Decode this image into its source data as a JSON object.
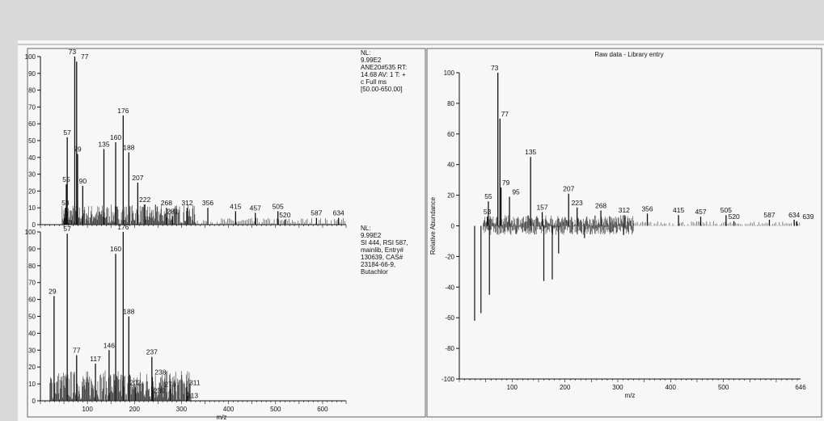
{
  "chart_data": [
    {
      "type": "bar",
      "panel": "top-left",
      "info_lines": [
        "NL:",
        "9.99E2",
        "ANE20#535 RT:",
        "14.68  AV: 1 T: +",
        "c Full ms",
        "[50.00-650.00]"
      ],
      "xlim": [
        0,
        650
      ],
      "ylim": [
        0,
        100
      ],
      "yticks": [
        0,
        10,
        20,
        30,
        40,
        50,
        60,
        70,
        80,
        90,
        100
      ],
      "xticks": [],
      "xlabel": "",
      "labeled_peaks": [
        {
          "label": "51",
          "x": 51,
          "y": 4
        },
        {
          "label": "53",
          "x": 53,
          "y": 10
        },
        {
          "label": "55",
          "x": 55,
          "y": 24
        },
        {
          "label": "57",
          "x": 57,
          "y": 52
        },
        {
          "label": "73",
          "x": 73,
          "y": 100
        },
        {
          "label": "77",
          "x": 77,
          "y": 97
        },
        {
          "label": "79",
          "x": 79,
          "y": 42
        },
        {
          "label": "90",
          "x": 90,
          "y": 23
        },
        {
          "label": "135",
          "x": 135,
          "y": 45
        },
        {
          "label": "160",
          "x": 160,
          "y": 49
        },
        {
          "label": "176",
          "x": 176,
          "y": 65
        },
        {
          "label": "188",
          "x": 188,
          "y": 43
        },
        {
          "label": "207",
          "x": 207,
          "y": 25
        },
        {
          "label": "222",
          "x": 222,
          "y": 12
        },
        {
          "label": "268",
          "x": 268,
          "y": 10
        },
        {
          "label": "281",
          "x": 281,
          "y": 5
        },
        {
          "label": "312",
          "x": 312,
          "y": 10
        },
        {
          "label": "356",
          "x": 356,
          "y": 10
        },
        {
          "label": "415",
          "x": 415,
          "y": 8
        },
        {
          "label": "457",
          "x": 457,
          "y": 7
        },
        {
          "label": "505",
          "x": 505,
          "y": 8
        },
        {
          "label": "520",
          "x": 520,
          "y": 3
        },
        {
          "label": "587",
          "x": 587,
          "y": 4
        },
        {
          "label": "634",
          "x": 634,
          "y": 4
        }
      ]
    },
    {
      "type": "bar",
      "panel": "bottom-left",
      "info_lines": [
        "NL:",
        "9.99E2",
        "SI 444, RSI 587,",
        "mainlib, Entry#",
        "130639, CAS#",
        "23184-66-9,",
        "Butachlor"
      ],
      "xlim": [
        0,
        650
      ],
      "ylim": [
        0,
        100
      ],
      "yticks": [
        0,
        10,
        20,
        30,
        40,
        50,
        60,
        70,
        80,
        90,
        100
      ],
      "xticks": [
        100,
        200,
        300,
        400,
        500,
        600
      ],
      "xlabel": "m/z",
      "labeled_peaks": [
        {
          "label": "29",
          "x": 29,
          "y": 62
        },
        {
          "label": "57",
          "x": 57,
          "y": 99
        },
        {
          "label": "77",
          "x": 77,
          "y": 27
        },
        {
          "label": "117",
          "x": 117,
          "y": 22
        },
        {
          "label": "146",
          "x": 146,
          "y": 30
        },
        {
          "label": "160",
          "x": 160,
          "y": 87
        },
        {
          "label": "176",
          "x": 176,
          "y": 100
        },
        {
          "label": "188",
          "x": 188,
          "y": 50
        },
        {
          "label": "202",
          "x": 202,
          "y": 8
        },
        {
          "label": "237",
          "x": 237,
          "y": 26
        },
        {
          "label": "238",
          "x": 238,
          "y": 14
        },
        {
          "label": "239",
          "x": 239,
          "y": 6
        },
        {
          "label": "276",
          "x": 276,
          "y": 7
        },
        {
          "label": "311",
          "x": 311,
          "y": 8
        },
        {
          "label": "313",
          "x": 313,
          "y": 3
        }
      ]
    },
    {
      "type": "bar",
      "panel": "right",
      "title": "Raw data - Library entry",
      "ylabel": "Relative Abundance",
      "xlabel": "m/z",
      "xlim": [
        0,
        646
      ],
      "ylim": [
        -100,
        100
      ],
      "yticks": [
        -100,
        -80,
        -60,
        -40,
        -20,
        0,
        20,
        40,
        60,
        80,
        100
      ],
      "xticks": [
        100,
        200,
        300,
        400,
        500
      ],
      "x_end_label": "646",
      "labeled_peaks": [
        {
          "label": "53",
          "x": 53,
          "y": 6
        },
        {
          "label": "55",
          "x": 55,
          "y": 16
        },
        {
          "label": "73",
          "x": 73,
          "y": 100
        },
        {
          "label": "77",
          "x": 77,
          "y": 70
        },
        {
          "label": "79",
          "x": 79,
          "y": 25
        },
        {
          "label": "95",
          "x": 95,
          "y": 19
        },
        {
          "label": "135",
          "x": 135,
          "y": 45
        },
        {
          "label": "157",
          "x": 157,
          "y": 9
        },
        {
          "label": "207",
          "x": 207,
          "y": 21
        },
        {
          "label": "223",
          "x": 223,
          "y": 12
        },
        {
          "label": "268",
          "x": 268,
          "y": 10
        },
        {
          "label": "312",
          "x": 312,
          "y": 7
        },
        {
          "label": "356",
          "x": 356,
          "y": 8
        },
        {
          "label": "415",
          "x": 415,
          "y": 7
        },
        {
          "label": "457",
          "x": 457,
          "y": 6
        },
        {
          "label": "505",
          "x": 505,
          "y": 7
        },
        {
          "label": "520",
          "x": 520,
          "y": 3
        },
        {
          "label": "587",
          "x": 587,
          "y": 4
        },
        {
          "label": "634",
          "x": 634,
          "y": 4
        },
        {
          "label": "639",
          "x": 639,
          "y": 3
        }
      ],
      "negative_peaks": [
        {
          "x": 29,
          "y": -62
        },
        {
          "x": 41,
          "y": -57
        },
        {
          "x": 57,
          "y": -45
        },
        {
          "x": 160,
          "y": -36
        },
        {
          "x": 176,
          "y": -35
        },
        {
          "x": 188,
          "y": -18
        },
        {
          "x": 237,
          "y": -8
        },
        {
          "x": 311,
          "y": -6
        }
      ]
    }
  ]
}
